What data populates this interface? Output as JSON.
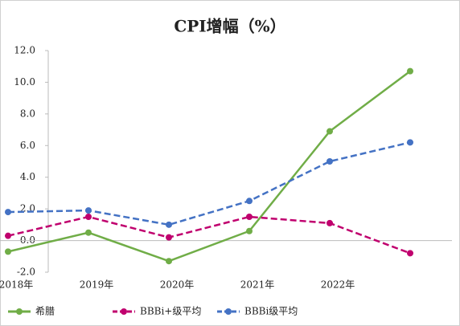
{
  "chart_data": {
    "type": "line",
    "title": "CPI增幅（%）",
    "categories": [
      "2018年",
      "2019年",
      "2020年",
      "2021年",
      "2022年",
      null
    ],
    "series": [
      {
        "name": "希腊",
        "color": "#70ad47",
        "dash": false,
        "values": [
          -0.7,
          0.5,
          -1.3,
          0.6,
          6.9,
          10.7
        ]
      },
      {
        "name": "BBBi+级平均",
        "color": "#c0006e",
        "dash": true,
        "values": [
          0.3,
          1.5,
          0.2,
          1.5,
          1.1,
          -0.8
        ]
      },
      {
        "name": "BBBi级平均",
        "color": "#4472c4",
        "dash": true,
        "values": [
          1.8,
          1.9,
          1.0,
          2.5,
          5.0,
          6.2
        ]
      }
    ],
    "ylim": [
      -2,
      12
    ],
    "yticks": [
      {
        "value": -2,
        "label": "-2.0"
      },
      {
        "value": 0,
        "label": "0.0"
      },
      {
        "value": 2,
        "label": "2.0"
      },
      {
        "value": 4,
        "label": "4.0"
      },
      {
        "value": 6,
        "label": "6.0"
      },
      {
        "value": 8,
        "label": "8.0"
      },
      {
        "value": 10,
        "label": "10.0"
      },
      {
        "value": 12,
        "label": "12.0"
      }
    ],
    "grid": false
  }
}
